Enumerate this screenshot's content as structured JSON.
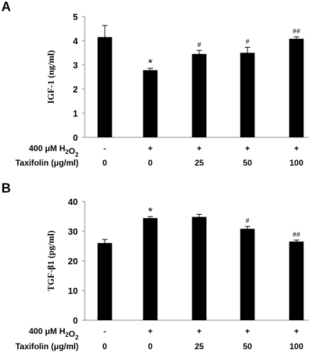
{
  "chart_data": [
    {
      "panel": "A",
      "type": "bar",
      "ylabel": "IGF-1 (ng/ml)",
      "ylim": [
        0,
        5
      ],
      "yticks": [
        "0",
        "1",
        "2",
        "3",
        "4",
        "5"
      ],
      "values": [
        4.15,
        2.78,
        3.45,
        3.5,
        4.08
      ],
      "errors": [
        0.48,
        0.08,
        0.15,
        0.23,
        0.08
      ],
      "annotations": [
        "",
        "*",
        "#",
        "#",
        "##"
      ],
      "conditions": [
        {
          "label": "400 μM H₂O₂",
          "values": [
            "-",
            "+",
            "+",
            "+",
            "+"
          ]
        },
        {
          "label": "Taxifolin (μg/ml)",
          "values": [
            "0",
            "0",
            "25",
            "50",
            "100"
          ]
        }
      ]
    },
    {
      "panel": "B",
      "type": "bar",
      "ylabel": "TGF-β1 (pg/ml)",
      "ylim": [
        0,
        40
      ],
      "yticks": [
        "0",
        "10",
        "20",
        "30",
        "40"
      ],
      "values": [
        26.0,
        34.4,
        34.8,
        30.8,
        26.5
      ],
      "errors": [
        1.2,
        0.5,
        0.9,
        0.8,
        0.5
      ],
      "annotations": [
        "",
        "*",
        "",
        "#",
        "##"
      ],
      "conditions": [
        {
          "label": "400 μM H₂O₂",
          "values": [
            "-",
            "+",
            "+",
            "+",
            "+"
          ]
        },
        {
          "label": "Taxifolin (μg/ml)",
          "values": [
            "0",
            "0",
            "25",
            "50",
            "100"
          ]
        }
      ]
    }
  ]
}
